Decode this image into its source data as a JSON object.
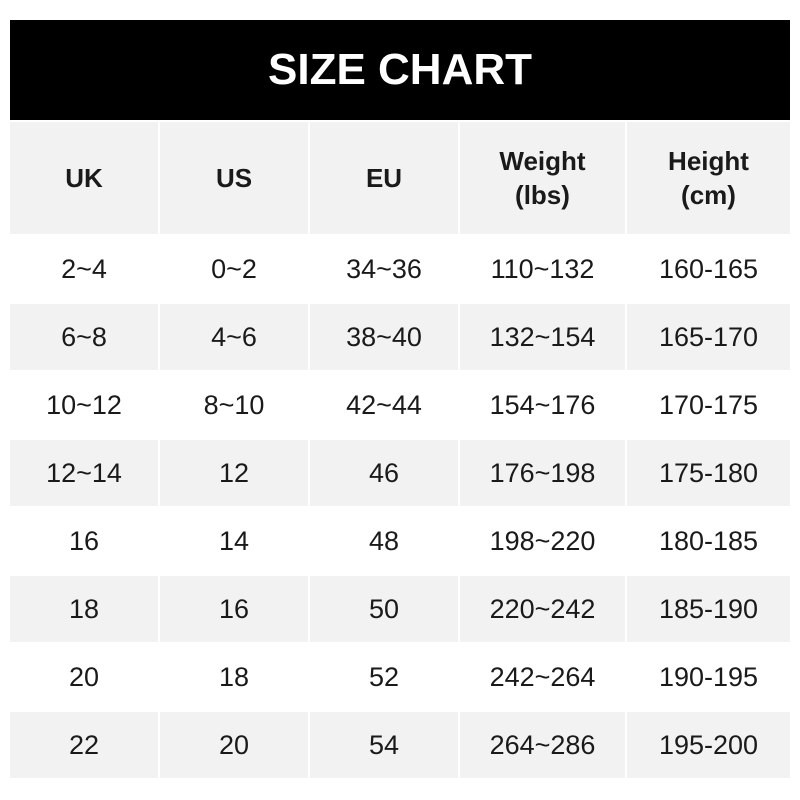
{
  "title": "SIZE CHART",
  "headers": [
    "UK",
    "US",
    "EU",
    "Weight\n(lbs)",
    "Height\n(cm)"
  ],
  "rows": [
    [
      "2~4",
      "0~2",
      "34~36",
      "110~132",
      "160-165"
    ],
    [
      "6~8",
      "4~6",
      "38~40",
      "132~154",
      "165-170"
    ],
    [
      "10~12",
      "8~10",
      "42~44",
      "154~176",
      "170-175"
    ],
    [
      "12~14",
      "12",
      "46",
      "176~198",
      "175-180"
    ],
    [
      "16",
      "14",
      "48",
      "198~220",
      "180-185"
    ],
    [
      "18",
      "16",
      "50",
      "220~242",
      "185-190"
    ],
    [
      "20",
      "18",
      "52",
      "242~264",
      "190-195"
    ],
    [
      "22",
      "20",
      "54",
      "264~286",
      "195-200"
    ]
  ]
}
